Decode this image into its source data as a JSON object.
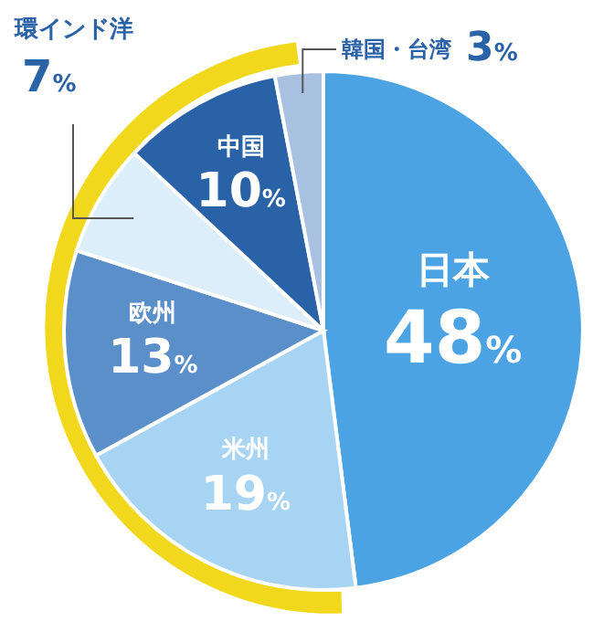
{
  "chart_data": {
    "type": "pie",
    "categories": [
      "日本",
      "米州",
      "欧州",
      "環インド洋",
      "中国",
      "韓国・台湾"
    ],
    "values": [
      48,
      19,
      13,
      7,
      10,
      3
    ],
    "value_labels": [
      "48%",
      "19%",
      "13%",
      "7%",
      "10%",
      "3%"
    ],
    "colors": [
      "#4ba3e3",
      "#a8d4f4",
      "#5b8fc9",
      "#dbeefa",
      "#2a62a8",
      "#a9c1e0"
    ]
  }
}
